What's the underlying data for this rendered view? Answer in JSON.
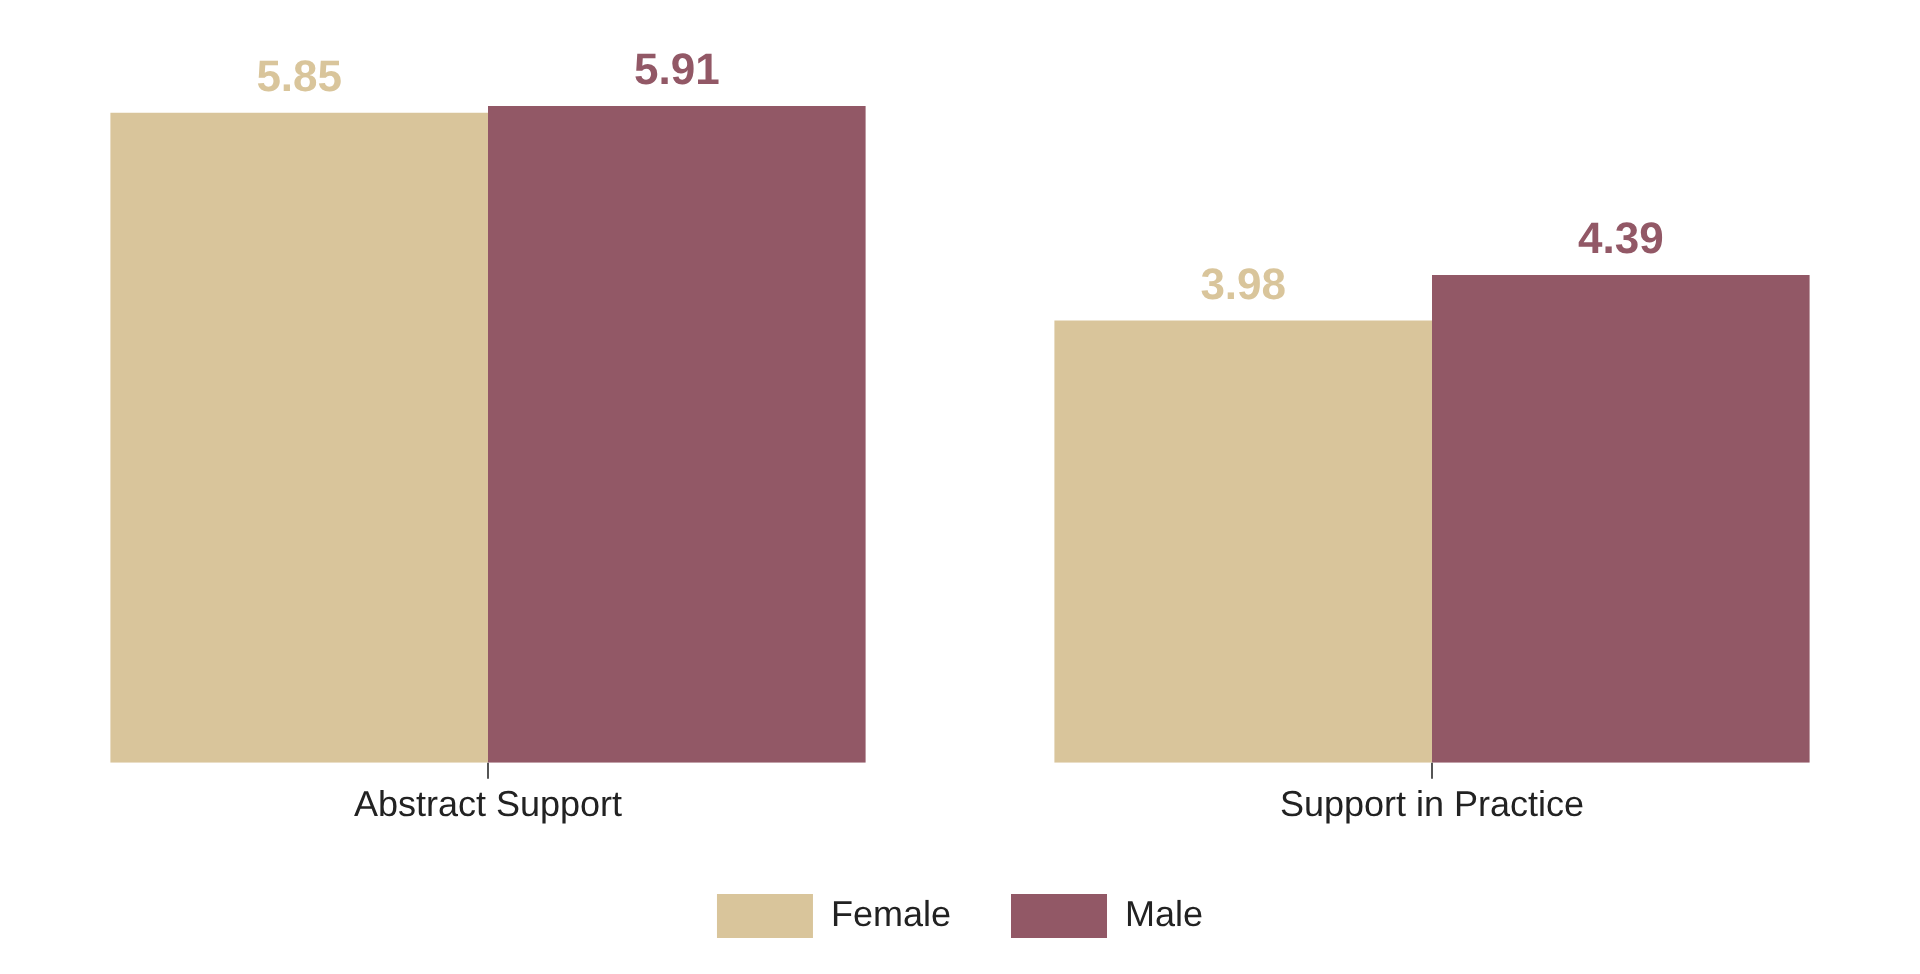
{
  "chart_data": {
    "type": "bar",
    "categories": [
      "Abstract Support",
      "Support in Practice"
    ],
    "series": [
      {
        "name": "Female",
        "color": "#d9c59b",
        "values": [
          5.85,
          3.98
        ]
      },
      {
        "name": "Male",
        "color": "#925866",
        "values": [
          5.91,
          4.39
        ]
      }
    ],
    "tick_labels": "x",
    "data_labels": true,
    "legend": "bottom",
    "grid": false
  }
}
